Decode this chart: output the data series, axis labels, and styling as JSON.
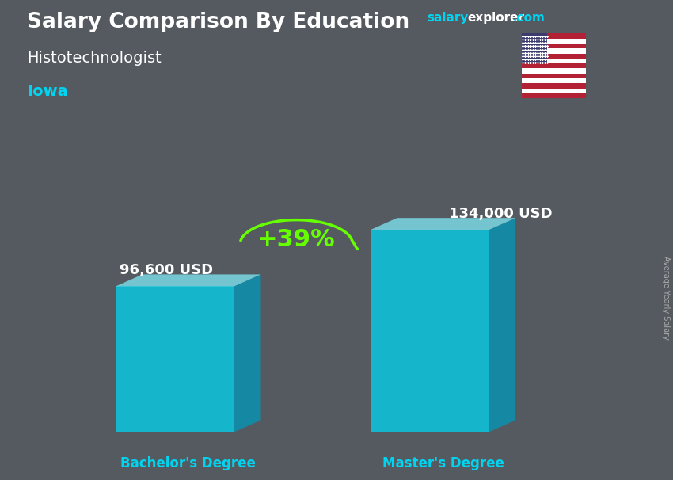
{
  "title_main": "Salary Comparison By Education",
  "title_sub": "Histotechnologist",
  "location": "Iowa",
  "categories": [
    "Bachelor's Degree",
    "Master's Degree"
  ],
  "values": [
    96600,
    134000
  ],
  "value_labels": [
    "96,600 USD",
    "134,000 USD"
  ],
  "bar_color_front": "#00d4f0",
  "bar_color_top": "#80eaf7",
  "bar_color_right": "#0099bb",
  "pct_change": "+39%",
  "pct_color": "#66ff00",
  "arrow_color": "#66ff00",
  "bg_color": "#555a60",
  "title_color": "#ffffff",
  "subtitle_color": "#ffffff",
  "location_color": "#00d4f0",
  "label_color": "#00d4f0",
  "value_color": "#ffffff",
  "salary_color": "#00d4f0",
  "explorer_color": "#00d4f0",
  "rotated_label": "Average Yearly Salary",
  "ylim_max": 175000,
  "bar_alpha": 0.75
}
